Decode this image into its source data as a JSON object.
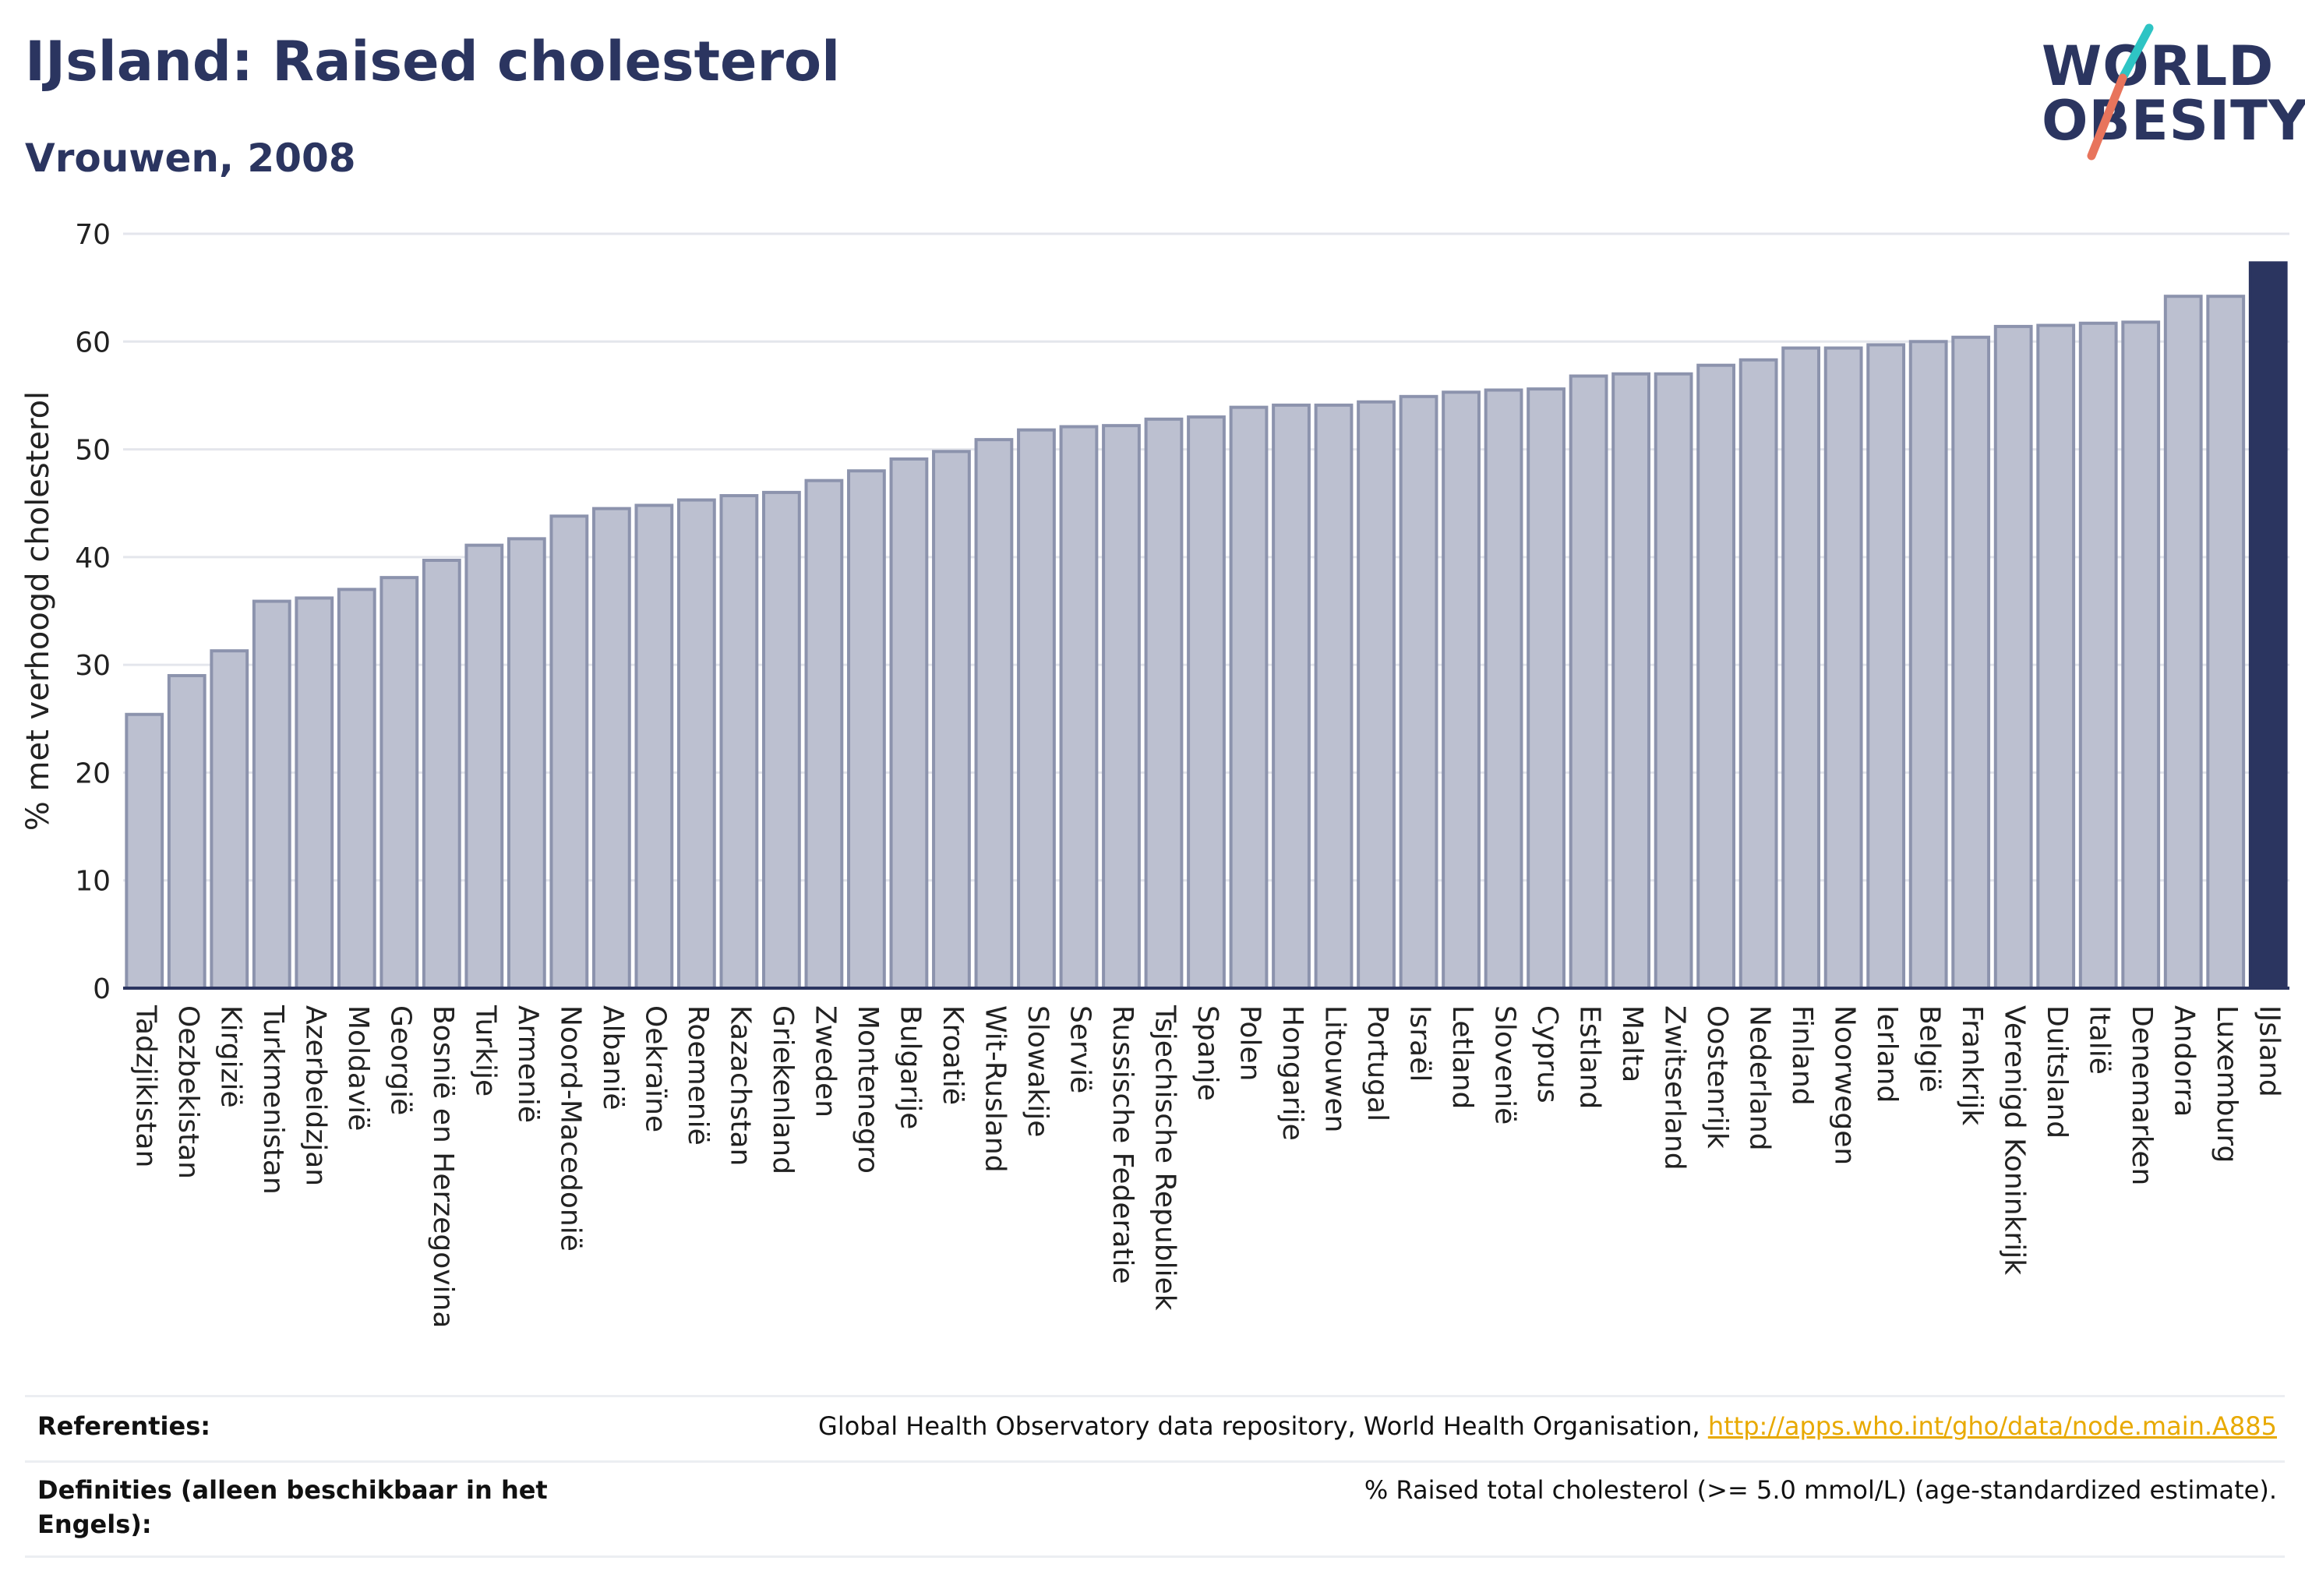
{
  "header": {
    "title": "IJsland: Raised cholesterol",
    "subtitle": "Vrouwen, 2008"
  },
  "logo": {
    "line1": "WORLD",
    "line2": "OBESITY",
    "accent_colors": [
      "#2ec4c4",
      "#e8745c"
    ]
  },
  "colors": {
    "bar": "#bcc0d0",
    "bar_stroke": "#8c93ad",
    "highlight": "#2b3560",
    "grid": "#e4e6ec",
    "axis": "#2b3560"
  },
  "chart_data": {
    "type": "bar",
    "title": "IJsland: Raised cholesterol",
    "subtitle": "Vrouwen, 2008",
    "xlabel": "",
    "ylabel": "% met verhoogd cholesterol",
    "ylim": [
      0,
      70
    ],
    "yticks": [
      0,
      10,
      20,
      30,
      40,
      50,
      60,
      70
    ],
    "grid": true,
    "highlight": "IJsland",
    "categories": [
      "Tadzjikistan",
      "Oezbekistan",
      "Kirgizië",
      "Turkmenistan",
      "Azerbeidzjan",
      "Moldavië",
      "Georgië",
      "Bosnië en Herzegovina",
      "Turkije",
      "Armenië",
      "Noord-Macedonië",
      "Albanië",
      "Oekraïne",
      "Roemenië",
      "Kazachstan",
      "Griekenland",
      "Zweden",
      "Montenegro",
      "Bulgarije",
      "Kroatië",
      "Wit-Rusland",
      "Slowakije",
      "Servië",
      "Russische Federatie",
      "Tsjechische Republiek",
      "Spanje",
      "Polen",
      "Hongarije",
      "Litouwen",
      "Portugal",
      "Israël",
      "Letland",
      "Slovenië",
      "Cyprus",
      "Estland",
      "Malta",
      "Zwitserland",
      "Oostenrijk",
      "Nederland",
      "Finland",
      "Noorwegen",
      "Ierland",
      "België",
      "Frankrijk",
      "Verenigd Koninkrijk",
      "Duitsland",
      "Italië",
      "Denemarken",
      "Andorra",
      "Luxemburg",
      "IJsland"
    ],
    "values": [
      25.4,
      29.0,
      31.3,
      35.9,
      36.2,
      37.0,
      38.1,
      39.7,
      41.1,
      41.7,
      43.8,
      44.5,
      44.8,
      45.3,
      45.7,
      46.0,
      47.1,
      48.0,
      49.1,
      49.8,
      50.9,
      51.8,
      52.1,
      52.2,
      52.8,
      53.0,
      53.9,
      54.1,
      54.1,
      54.4,
      54.9,
      55.3,
      55.5,
      55.6,
      56.8,
      57.0,
      57.0,
      57.8,
      58.3,
      59.4,
      59.4,
      59.7,
      60.0,
      60.4,
      61.4,
      61.5,
      61.7,
      61.8,
      64.2,
      64.2,
      67.3
    ]
  },
  "footer": {
    "references_label": "Referenties:",
    "references_text": "Global Health Observatory data repository, World Health Organisation, ",
    "references_link": "http://apps.who.int/gho/data/node.main.A885",
    "definitions_label": "Definities (alleen beschikbaar in het Engels):",
    "definitions_text": "% Raised total cholesterol (>= 5.0 mmol/L) (age-standardized estimate)."
  }
}
